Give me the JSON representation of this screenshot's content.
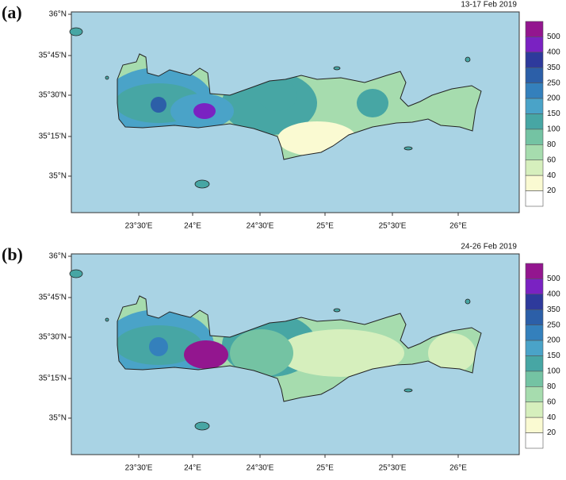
{
  "panels": [
    {
      "label": "(a)",
      "date": "13-17 Feb 2019",
      "lat_ticks": [
        "36°N",
        "35°45'N",
        "35°30'N",
        "35°15'N",
        "35°N"
      ],
      "lon_ticks": [
        "23°30'E",
        "24°E",
        "24°30'E",
        "25°E",
        "25°30'E",
        "26°E"
      ],
      "colorbar_labels": [
        500,
        400,
        350,
        250,
        200,
        150,
        100,
        80,
        60,
        40,
        20
      ]
    },
    {
      "label": "(b)",
      "date": "24-26 Feb 2019",
      "lat_ticks": [
        "36°N",
        "35°45'N",
        "35°30'N",
        "35°15'N",
        "35°N"
      ],
      "lon_ticks": [
        "23°30'E",
        "24°E",
        "24°30'E",
        "25°E",
        "25°30'E",
        "26°E"
      ],
      "colorbar_labels": [
        500,
        400,
        350,
        250,
        200,
        150,
        100,
        80,
        60,
        40,
        20
      ]
    }
  ],
  "colorbar_colors": [
    "#93168f",
    "#7a22c2",
    "#2e3a9c",
    "#2c5fa8",
    "#3480bc",
    "#4aa3c8",
    "#47a6a4",
    "#74c3a3",
    "#a6dcae",
    "#d6efbd",
    "#fafad2",
    "#ffffff"
  ]
}
